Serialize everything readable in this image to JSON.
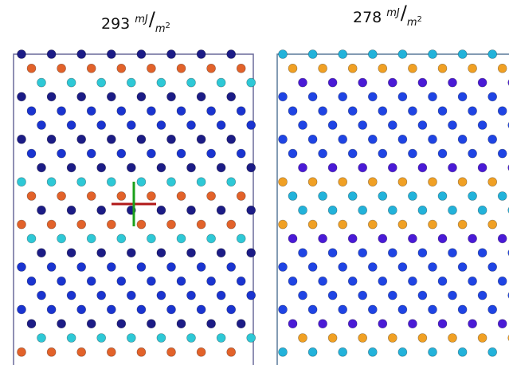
{
  "panels": [
    {
      "energy": "293",
      "unit_numerator": "mJ",
      "unit_denominator": "m",
      "unit_exponent": "2"
    },
    {
      "energy": "278",
      "unit_numerator": "mJ",
      "unit_denominator": "m",
      "unit_exponent": "2"
    }
  ]
}
